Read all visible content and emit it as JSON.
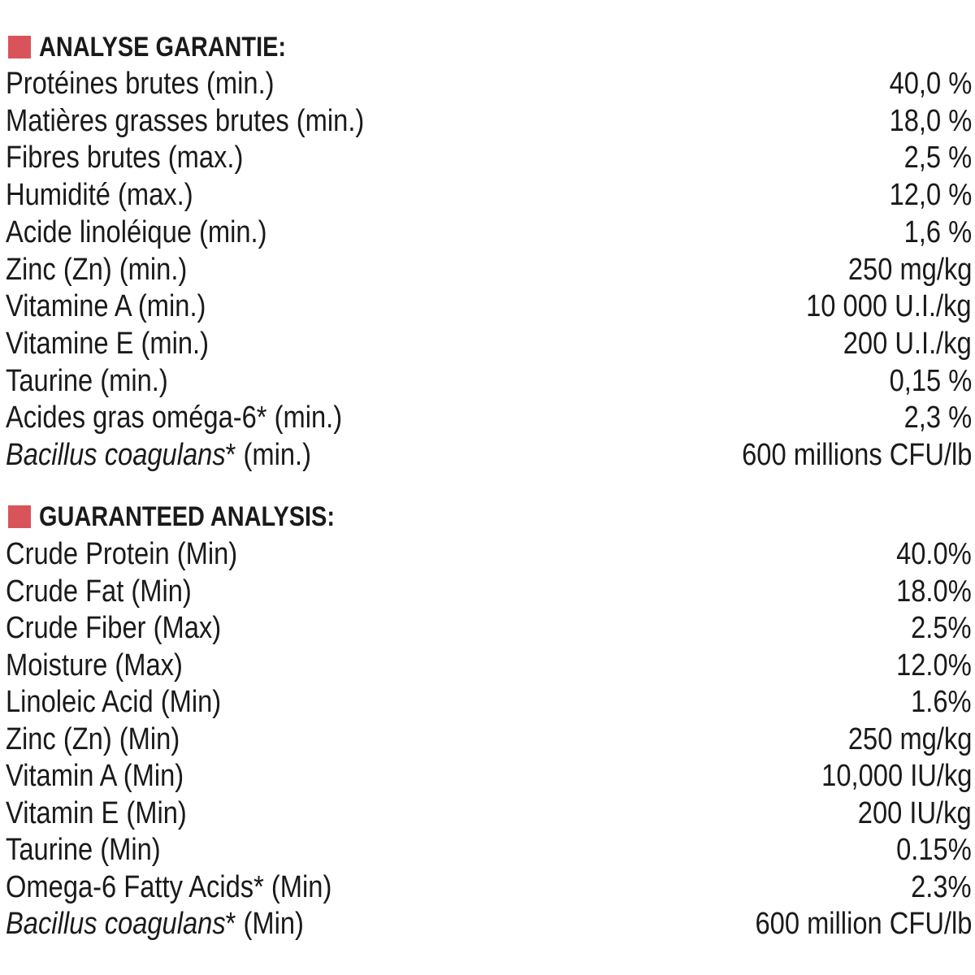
{
  "sections": [
    {
      "title": "ANALYSE GARANTIE:",
      "rows": [
        {
          "label": "Protéines brutes (min.)",
          "value": "40,0 %"
        },
        {
          "label": "Matières grasses brutes (min.)",
          "value": "18,0 %"
        },
        {
          "label": "Fibres brutes (max.)",
          "value": "2,5 %"
        },
        {
          "label": "Humidité (max.)",
          "value": "12,0 %"
        },
        {
          "label": "Acide linoléique (min.)",
          "value": "1,6 %"
        },
        {
          "label": "Zinc (Zn) (min.)",
          "value": "250 mg/kg"
        },
        {
          "label": "Vitamine A (min.)",
          "value": "10 000 U.I./kg"
        },
        {
          "label": "Vitamine E (min.)",
          "value": "200 U.I./kg"
        },
        {
          "label": "Taurine (min.)",
          "value": "0,15 %"
        },
        {
          "label": "Acides gras oméga-6* (min.)",
          "value": "2,3 %"
        },
        {
          "label_italic": "Bacillus coagulans",
          "label": "* (min.)",
          "value": "600 millions CFU/lb"
        }
      ]
    },
    {
      "title": "GUARANTEED ANALYSIS:",
      "rows": [
        {
          "label": "Crude Protein (Min)",
          "value": "40.0%"
        },
        {
          "label": "Crude Fat (Min)",
          "value": "18.0%"
        },
        {
          "label": "Crude Fiber (Max)",
          "value": "2.5%"
        },
        {
          "label": "Moisture (Max)",
          "value": "12.0%"
        },
        {
          "label": "Linoleic Acid (Min)",
          "value": "1.6%"
        },
        {
          "label": "Zinc (Zn) (Min)",
          "value": "250 mg/kg"
        },
        {
          "label": "Vitamin A (Min)",
          "value": "10,000 IU/kg"
        },
        {
          "label": "Vitamin E (Min)",
          "value": "200 IU/kg"
        },
        {
          "label": "Taurine (Min)",
          "value": "0.15%"
        },
        {
          "label": "Omega-6 Fatty Acids* (Min)",
          "value": "2.3%"
        },
        {
          "label_italic": "Bacillus coagulans",
          "label": "* (Min)",
          "value": "600 million CFU/lb"
        }
      ]
    }
  ]
}
